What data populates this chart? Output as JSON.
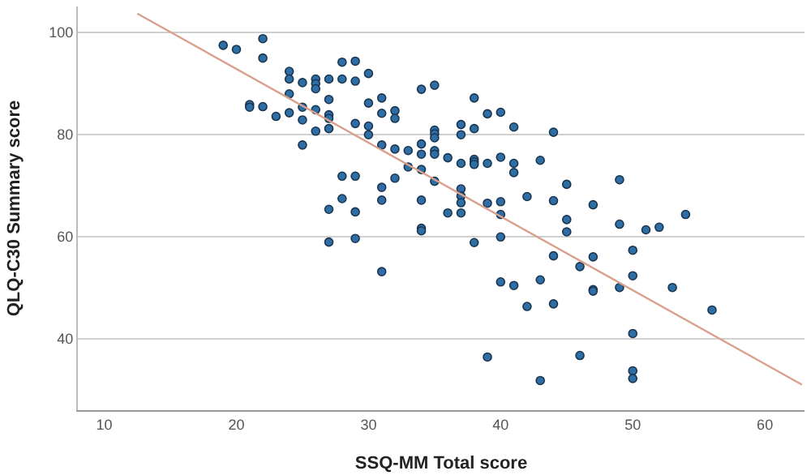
{
  "chart_data": {
    "type": "scatter",
    "xlabel": "SSQ-MM Total score",
    "ylabel": "QLQ-C30 Summary score",
    "xlim": [
      8,
      63
    ],
    "ylim": [
      26,
      105
    ],
    "xticks": [
      10,
      20,
      30,
      40,
      50,
      60
    ],
    "yticks": [
      40,
      60,
      80,
      100
    ],
    "grid": "y",
    "marker": "circle",
    "series": [
      {
        "color": "#2f6ea5",
        "x": [
          19,
          20,
          22,
          22,
          24,
          24,
          25,
          26,
          26,
          26,
          27,
          28,
          29,
          28,
          29,
          30,
          24,
          21,
          21,
          22,
          23,
          24,
          25,
          25,
          26,
          27,
          27,
          27,
          26,
          27,
          25,
          29,
          30,
          30,
          30,
          31,
          31,
          32,
          32,
          31,
          32,
          33,
          34,
          34,
          35,
          35,
          33,
          34,
          35,
          34,
          35,
          28,
          29,
          32,
          31,
          28,
          31,
          34,
          27,
          29,
          38,
          39,
          40,
          41,
          37,
          37,
          38,
          44,
          35,
          35,
          35,
          36,
          37,
          38,
          38,
          38,
          39,
          40,
          41,
          41,
          43,
          37,
          37,
          37,
          36,
          37,
          39,
          40,
          42,
          44,
          45,
          47,
          49,
          40,
          45,
          54,
          27,
          29,
          31,
          34,
          34,
          45,
          49,
          51,
          52,
          40,
          38,
          44,
          47,
          50,
          46,
          50,
          40,
          41,
          43,
          47,
          47,
          49,
          53,
          42,
          44,
          56,
          50,
          39,
          46,
          50,
          50,
          43
        ],
        "values": [
          97.4,
          96.6,
          98.7,
          94.9,
          92.3,
          90.8,
          90.1,
          90.8,
          89.9,
          88.9,
          90.8,
          94.1,
          94.3,
          90.8,
          90.4,
          91.9,
          87.9,
          85.8,
          85.3,
          85.4,
          83.5,
          84.2,
          85.3,
          82.8,
          84.8,
          86.8,
          83.8,
          83.1,
          80.6,
          81.1,
          77.9,
          82.1,
          86.1,
          81.6,
          79.9,
          87.1,
          84.1,
          84.6,
          83.1,
          77.9,
          77.1,
          76.8,
          78.1,
          76.1,
          76.8,
          76.1,
          73.6,
          73.1,
          70.8,
          88.8,
          89.6,
          71.8,
          71.8,
          71.4,
          69.6,
          67.4,
          67.1,
          67.1,
          65.3,
          64.8,
          87.1,
          84,
          84.3,
          81.4,
          81.9,
          79.9,
          81.1,
          80.4,
          80.8,
          80.1,
          79.3,
          75.4,
          74.3,
          75.1,
          74.6,
          74.1,
          74.3,
          75.5,
          74.3,
          72.5,
          74.9,
          69.3,
          67.9,
          66.6,
          64.6,
          64.6,
          66.5,
          66.8,
          67.8,
          67,
          70.2,
          66.2,
          71.1,
          64.3,
          63.3,
          64.3,
          58.9,
          59.6,
          53.1,
          61.6,
          61.1,
          60.9,
          62.4,
          61.3,
          61.8,
          59.9,
          58.8,
          56.2,
          56,
          57.3,
          54.1,
          52.3,
          51.1,
          50.4,
          51.5,
          49.6,
          49.3,
          50,
          50,
          46.3,
          46.8,
          45.6,
          41,
          36.4,
          36.7,
          33.7,
          32.2,
          31.8
        ]
      },
      {
        "type": "line",
        "color": "#d9a08c",
        "x": [
          12.5,
          62.8
        ],
        "values": [
          103.6,
          31
        ],
        "marker": "none"
      }
    ]
  }
}
